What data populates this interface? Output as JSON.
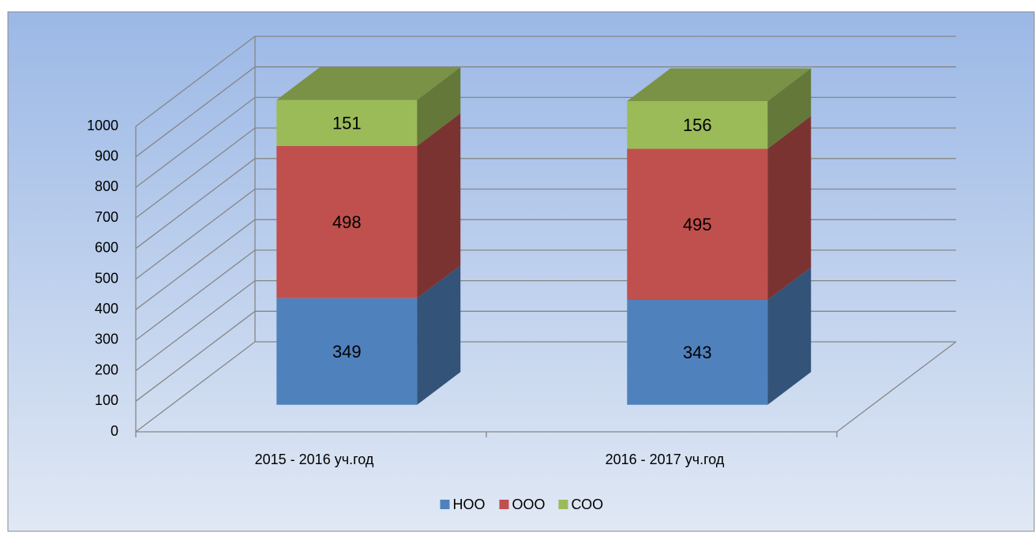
{
  "chart_data": {
    "type": "bar3d_stacked",
    "categories": [
      "2015 - 2016 уч.год",
      "2016 - 2017 уч.год"
    ],
    "series": [
      {
        "name": "НОО",
        "color": "#4f81bd",
        "values": [
          349,
          343
        ]
      },
      {
        "name": "ООО",
        "color": "#c0504d",
        "values": [
          498,
          495
        ]
      },
      {
        "name": "СОО",
        "color": "#9bbb59",
        "values": [
          151,
          156
        ]
      }
    ],
    "ylim": [
      0,
      1000
    ],
    "yticks": [
      0,
      100,
      200,
      300,
      400,
      500,
      600,
      700,
      800,
      900,
      1000
    ],
    "grid": true,
    "legend": "bottom"
  }
}
